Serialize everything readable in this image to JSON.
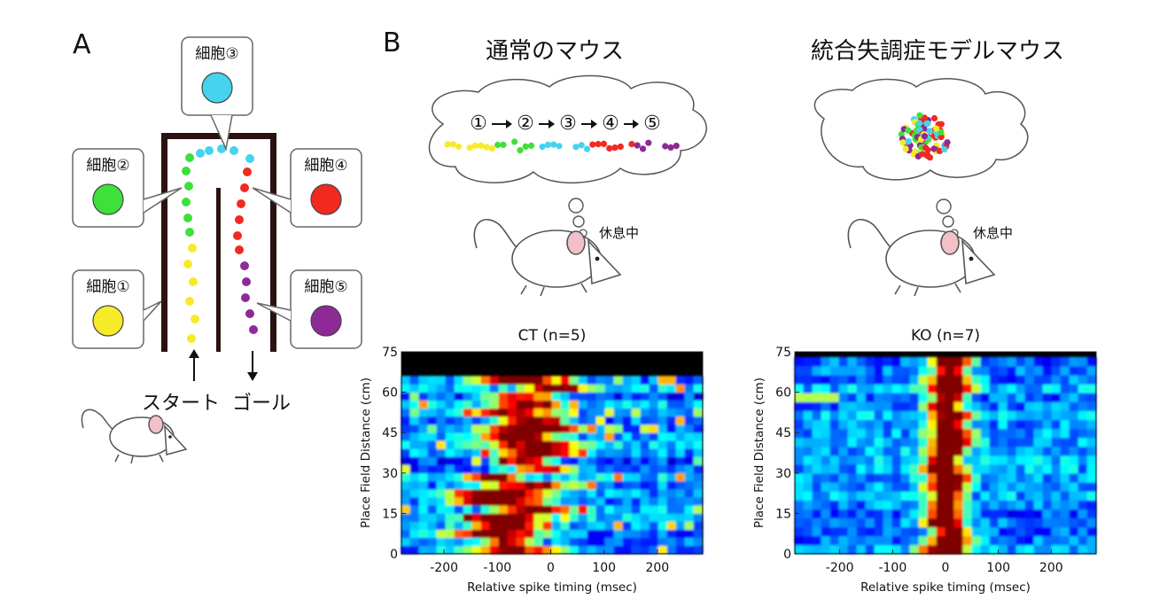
{
  "panelA": {
    "label": "A",
    "cells": [
      {
        "label": "細胞①",
        "color": "#f7ea2a"
      },
      {
        "label": "細胞②",
        "color": "#3ee03a"
      },
      {
        "label": "細胞③",
        "color": "#45d3f0"
      },
      {
        "label": "細胞④",
        "color": "#f2291f"
      },
      {
        "label": "細胞⑤",
        "color": "#8e2a96"
      }
    ],
    "start_label": "スタート",
    "goal_label": "ゴール"
  },
  "panelB": {
    "label": "B",
    "normal": {
      "title": "通常のマウス",
      "sequence": [
        "①",
        "②",
        "③",
        "④",
        "⑤"
      ],
      "resting_label": "休息中"
    },
    "model": {
      "title": "統合失調症モデルマウス",
      "resting_label": "休息中"
    }
  },
  "chart_data": [
    {
      "type": "heatmap",
      "title": "CT (n=5)",
      "xlabel": "Relative spike timing (msec)",
      "ylabel": "Place Field Distance (cm)",
      "xlim": [
        -280,
        285
      ],
      "ylim": [
        0,
        75
      ],
      "xticks": [
        -200,
        -100,
        0,
        100,
        200
      ],
      "yticks": [
        0,
        15,
        30,
        45,
        60,
        75
      ],
      "data_ymax": 66,
      "colormap": "jet"
    },
    {
      "type": "heatmap",
      "title": "KO (n=7)",
      "xlabel": "Relative spike timing (msec)",
      "ylabel": "Place Field Distance (cm)",
      "xlim": [
        -285,
        285
      ],
      "ylim": [
        0,
        75
      ],
      "xticks": [
        -200,
        -100,
        0,
        100,
        200
      ],
      "yticks": [
        0,
        15,
        30,
        45,
        60,
        75
      ],
      "data_ymax": 73,
      "colormap": "jet"
    }
  ]
}
